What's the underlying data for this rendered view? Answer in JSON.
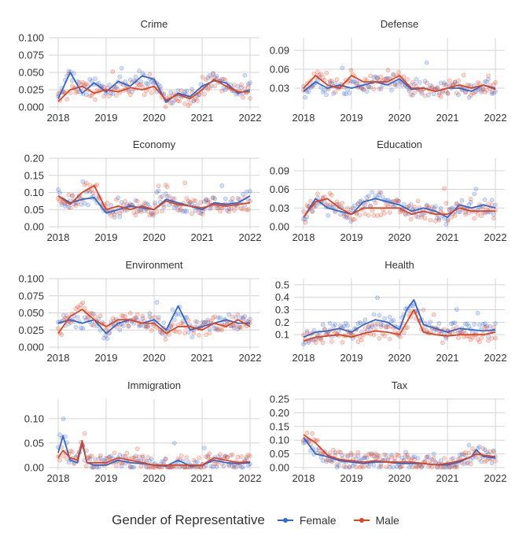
{
  "legend": {
    "title": "Gender of Representative",
    "items": [
      {
        "label": "Female",
        "color": "#3366cc"
      },
      {
        "label": "Male",
        "color": "#dd4422"
      }
    ]
  },
  "x_tick_labels": [
    "2018",
    "2019",
    "2020",
    "2021",
    "2022"
  ],
  "chart_data": [
    {
      "type": "scatter+line",
      "title": "Crime",
      "x_range": [
        2018,
        2022
      ],
      "ylim": [
        0,
        0.1
      ],
      "yticks": [
        "0.000",
        "0.025",
        "0.050",
        "0.075",
        "0.100"
      ],
      "series": [
        {
          "name": "Female",
          "color": "#3366cc",
          "x": [
            2018.0,
            2018.25,
            2018.5,
            2018.75,
            2019.0,
            2019.25,
            2019.5,
            2019.75,
            2020.0,
            2020.25,
            2020.5,
            2020.75,
            2021.0,
            2021.25,
            2021.5,
            2021.75,
            2022.0
          ],
          "values": [
            0.012,
            0.05,
            0.02,
            0.035,
            0.022,
            0.037,
            0.03,
            0.045,
            0.04,
            0.007,
            0.02,
            0.015,
            0.03,
            0.038,
            0.035,
            0.02,
            0.025
          ]
        },
        {
          "name": "Male",
          "color": "#dd4422",
          "x": [
            2018.0,
            2018.25,
            2018.5,
            2018.75,
            2019.0,
            2019.25,
            2019.5,
            2019.75,
            2020.0,
            2020.25,
            2020.5,
            2020.75,
            2021.0,
            2021.25,
            2021.5,
            2021.75,
            2022.0
          ],
          "values": [
            0.008,
            0.025,
            0.03,
            0.02,
            0.025,
            0.022,
            0.028,
            0.025,
            0.03,
            0.01,
            0.018,
            0.012,
            0.025,
            0.04,
            0.03,
            0.022,
            0.022
          ]
        }
      ]
    },
    {
      "type": "scatter+line",
      "title": "Defense",
      "x_range": [
        2018,
        2022
      ],
      "ylim": [
        0.0,
        0.11
      ],
      "yticks": [
        "0.03",
        "0.06",
        "0.09"
      ],
      "ytick_values": [
        0.03,
        0.06,
        0.09
      ],
      "series": [
        {
          "name": "Female",
          "color": "#3366cc",
          "x": [
            2018.0,
            2018.25,
            2018.5,
            2018.75,
            2019.0,
            2019.25,
            2019.5,
            2019.75,
            2020.0,
            2020.25,
            2020.5,
            2020.75,
            2021.0,
            2021.25,
            2021.5,
            2021.75,
            2022.0
          ],
          "values": [
            0.025,
            0.04,
            0.03,
            0.035,
            0.03,
            0.035,
            0.04,
            0.035,
            0.045,
            0.028,
            0.03,
            0.025,
            0.03,
            0.03,
            0.025,
            0.035,
            0.03
          ]
        },
        {
          "name": "Male",
          "color": "#dd4422",
          "x": [
            2018.0,
            2018.25,
            2018.5,
            2018.75,
            2019.0,
            2019.25,
            2019.5,
            2019.75,
            2020.0,
            2020.25,
            2020.5,
            2020.75,
            2021.0,
            2021.25,
            2021.5,
            2021.75,
            2022.0
          ],
          "values": [
            0.03,
            0.05,
            0.035,
            0.03,
            0.05,
            0.04,
            0.04,
            0.04,
            0.05,
            0.03,
            0.03,
            0.025,
            0.03,
            0.035,
            0.03,
            0.035,
            0.028
          ]
        }
      ]
    },
    {
      "type": "scatter+line",
      "title": "Economy",
      "x_range": [
        2018,
        2022
      ],
      "ylim": [
        0,
        0.2
      ],
      "yticks": [
        "0.00",
        "0.05",
        "0.10",
        "0.15",
        "0.20"
      ],
      "series": [
        {
          "name": "Female",
          "color": "#3366cc",
          "x": [
            2018.0,
            2018.25,
            2018.5,
            2018.75,
            2019.0,
            2019.25,
            2019.5,
            2019.75,
            2020.0,
            2020.25,
            2020.5,
            2020.75,
            2021.0,
            2021.25,
            2021.5,
            2021.75,
            2022.0
          ],
          "values": [
            0.09,
            0.07,
            0.08,
            0.085,
            0.04,
            0.05,
            0.06,
            0.055,
            0.05,
            0.08,
            0.07,
            0.06,
            0.05,
            0.07,
            0.065,
            0.07,
            0.09
          ]
        },
        {
          "name": "Male",
          "color": "#dd4422",
          "x": [
            2018.0,
            2018.25,
            2018.5,
            2018.75,
            2019.0,
            2019.25,
            2019.5,
            2019.75,
            2020.0,
            2020.25,
            2020.5,
            2020.75,
            2021.0,
            2021.25,
            2021.5,
            2021.75,
            2022.0
          ],
          "values": [
            0.09,
            0.065,
            0.1,
            0.12,
            0.05,
            0.06,
            0.05,
            0.06,
            0.05,
            0.075,
            0.065,
            0.06,
            0.055,
            0.065,
            0.06,
            0.065,
            0.07
          ]
        }
      ]
    },
    {
      "type": "scatter+line",
      "title": "Education",
      "x_range": [
        2018,
        2022
      ],
      "ylim": [
        0,
        0.11
      ],
      "yticks": [
        "0.00",
        "0.03",
        "0.06",
        "0.09"
      ],
      "ytick_values": [
        0.0,
        0.03,
        0.06,
        0.09
      ],
      "series": [
        {
          "name": "Female",
          "color": "#3366cc",
          "x": [
            2018.0,
            2018.25,
            2018.5,
            2018.75,
            2019.0,
            2019.25,
            2019.5,
            2019.75,
            2020.0,
            2020.25,
            2020.5,
            2020.75,
            2021.0,
            2021.25,
            2021.5,
            2021.75,
            2022.0
          ],
          "values": [
            0.015,
            0.045,
            0.03,
            0.025,
            0.02,
            0.04,
            0.045,
            0.04,
            0.035,
            0.025,
            0.03,
            0.025,
            0.015,
            0.035,
            0.03,
            0.035,
            0.03
          ]
        },
        {
          "name": "Male",
          "color": "#dd4422",
          "x": [
            2018.0,
            2018.25,
            2018.5,
            2018.75,
            2019.0,
            2019.25,
            2019.5,
            2019.75,
            2020.0,
            2020.25,
            2020.5,
            2020.75,
            2021.0,
            2021.25,
            2021.5,
            2021.75,
            2022.0
          ],
          "values": [
            0.015,
            0.04,
            0.045,
            0.03,
            0.02,
            0.03,
            0.03,
            0.03,
            0.03,
            0.02,
            0.025,
            0.02,
            0.02,
            0.03,
            0.025,
            0.025,
            0.025
          ]
        }
      ]
    },
    {
      "type": "scatter+line",
      "title": "Environment",
      "x_range": [
        2018,
        2022
      ],
      "ylim": [
        0,
        0.1
      ],
      "yticks": [
        "0.000",
        "0.025",
        "0.050",
        "0.075",
        "0.100"
      ],
      "series": [
        {
          "name": "Female",
          "color": "#3366cc",
          "x": [
            2018.0,
            2018.25,
            2018.5,
            2018.75,
            2019.0,
            2019.25,
            2019.5,
            2019.75,
            2020.0,
            2020.25,
            2020.5,
            2020.75,
            2021.0,
            2021.25,
            2021.5,
            2021.75,
            2022.0
          ],
          "values": [
            0.035,
            0.04,
            0.035,
            0.04,
            0.02,
            0.035,
            0.04,
            0.035,
            0.04,
            0.025,
            0.06,
            0.025,
            0.03,
            0.035,
            0.04,
            0.035,
            0.035
          ]
        },
        {
          "name": "Male",
          "color": "#dd4422",
          "x": [
            2018.0,
            2018.25,
            2018.5,
            2018.75,
            2019.0,
            2019.25,
            2019.5,
            2019.75,
            2020.0,
            2020.25,
            2020.5,
            2020.75,
            2021.0,
            2021.25,
            2021.5,
            2021.75,
            2022.0
          ],
          "values": [
            0.02,
            0.045,
            0.055,
            0.04,
            0.03,
            0.04,
            0.04,
            0.035,
            0.035,
            0.02,
            0.03,
            0.03,
            0.025,
            0.035,
            0.03,
            0.04,
            0.03
          ]
        }
      ]
    },
    {
      "type": "scatter+line",
      "title": "Health",
      "x_range": [
        2018,
        2022
      ],
      "ylim": [
        0,
        0.55
      ],
      "yticks": [
        "0.1",
        "0.2",
        "0.3",
        "0.4",
        "0.5"
      ],
      "ytick_values": [
        0.1,
        0.2,
        0.3,
        0.4,
        0.5
      ],
      "series": [
        {
          "name": "Female",
          "color": "#3366cc",
          "x": [
            2018.0,
            2018.25,
            2018.5,
            2018.75,
            2019.0,
            2019.25,
            2019.5,
            2019.75,
            2020.0,
            2020.15,
            2020.3,
            2020.5,
            2020.75,
            2021.0,
            2021.25,
            2021.5,
            2021.75,
            2022.0
          ],
          "values": [
            0.08,
            0.12,
            0.13,
            0.15,
            0.12,
            0.18,
            0.22,
            0.2,
            0.14,
            0.3,
            0.38,
            0.18,
            0.15,
            0.12,
            0.15,
            0.14,
            0.13,
            0.14
          ]
        },
        {
          "name": "Male",
          "color": "#dd4422",
          "x": [
            2018.0,
            2018.25,
            2018.5,
            2018.75,
            2019.0,
            2019.25,
            2019.5,
            2019.75,
            2020.0,
            2020.15,
            2020.3,
            2020.5,
            2020.75,
            2021.0,
            2021.25,
            2021.5,
            2021.75,
            2022.0
          ],
          "values": [
            0.05,
            0.08,
            0.09,
            0.1,
            0.08,
            0.11,
            0.13,
            0.12,
            0.1,
            0.2,
            0.3,
            0.12,
            0.1,
            0.09,
            0.1,
            0.1,
            0.1,
            0.12
          ]
        }
      ]
    },
    {
      "type": "scatter+line",
      "title": "Immigration",
      "x_range": [
        2018,
        2022
      ],
      "ylim": [
        0,
        0.14
      ],
      "yticks": [
        "0.00",
        "0.05",
        "0.10"
      ],
      "ytick_values": [
        0.0,
        0.05,
        0.1
      ],
      "series": [
        {
          "name": "Female",
          "color": "#3366cc",
          "x": [
            2018.0,
            2018.1,
            2018.25,
            2018.4,
            2018.5,
            2018.6,
            2018.75,
            2019.0,
            2019.25,
            2019.5,
            2019.75,
            2020.0,
            2020.25,
            2020.5,
            2020.75,
            2021.0,
            2021.25,
            2021.5,
            2021.75,
            2022.0
          ],
          "values": [
            0.03,
            0.065,
            0.015,
            0.01,
            0.05,
            0.01,
            0.005,
            0.005,
            0.015,
            0.01,
            0.008,
            0.005,
            0.003,
            0.015,
            0.003,
            0.005,
            0.015,
            0.01,
            0.008,
            0.01
          ]
        },
        {
          "name": "Male",
          "color": "#dd4422",
          "x": [
            2018.0,
            2018.1,
            2018.25,
            2018.4,
            2018.5,
            2018.6,
            2018.75,
            2019.0,
            2019.25,
            2019.5,
            2019.75,
            2020.0,
            2020.25,
            2020.5,
            2020.75,
            2021.0,
            2021.25,
            2021.5,
            2021.75,
            2022.0
          ],
          "values": [
            0.02,
            0.035,
            0.02,
            0.015,
            0.055,
            0.01,
            0.01,
            0.01,
            0.02,
            0.015,
            0.01,
            0.005,
            0.005,
            0.005,
            0.005,
            0.005,
            0.02,
            0.015,
            0.01,
            0.012
          ]
        }
      ]
    },
    {
      "type": "scatter+line",
      "title": "Tax",
      "x_range": [
        2018,
        2022
      ],
      "ylim": [
        0,
        0.25
      ],
      "yticks": [
        "0.00",
        "0.05",
        "0.10",
        "0.15",
        "0.20",
        "0.25"
      ],
      "series": [
        {
          "name": "Female",
          "color": "#3366cc",
          "x": [
            2018.0,
            2018.25,
            2018.5,
            2018.75,
            2019.0,
            2019.25,
            2019.5,
            2019.75,
            2020.0,
            2020.25,
            2020.5,
            2020.75,
            2021.0,
            2021.25,
            2021.5,
            2021.6,
            2021.75,
            2022.0
          ],
          "values": [
            0.11,
            0.05,
            0.04,
            0.025,
            0.02,
            0.015,
            0.02,
            0.02,
            0.015,
            0.015,
            0.015,
            0.01,
            0.01,
            0.02,
            0.04,
            0.065,
            0.04,
            0.035
          ]
        },
        {
          "name": "Male",
          "color": "#dd4422",
          "x": [
            2018.0,
            2018.25,
            2018.5,
            2018.75,
            2019.0,
            2019.25,
            2019.5,
            2019.75,
            2020.0,
            2020.25,
            2020.5,
            2020.75,
            2021.0,
            2021.25,
            2021.5,
            2021.6,
            2021.75,
            2022.0
          ],
          "values": [
            0.12,
            0.09,
            0.045,
            0.03,
            0.025,
            0.02,
            0.025,
            0.02,
            0.02,
            0.02,
            0.015,
            0.01,
            0.015,
            0.025,
            0.04,
            0.05,
            0.045,
            0.04
          ]
        }
      ]
    }
  ]
}
